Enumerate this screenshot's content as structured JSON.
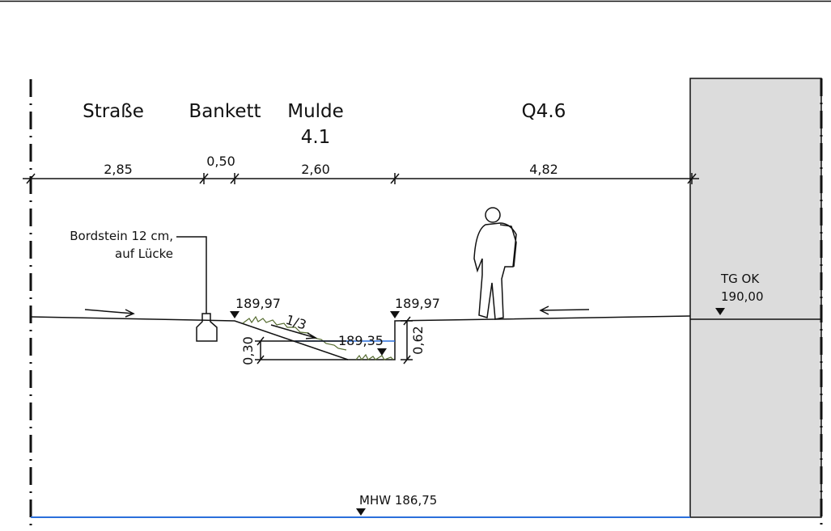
{
  "sections": [
    {
      "label": "Straße"
    },
    {
      "label": "Bankett"
    },
    {
      "label": "Mulde",
      "sublabel": "4.1"
    },
    {
      "label": "Q4.6"
    }
  ],
  "dimensions": [
    "2,85",
    "0,50",
    "2,60",
    "4,82"
  ],
  "curb_note": [
    "Bordstein 12 cm,",
    "auf Lücke"
  ],
  "levels": {
    "left_edge": "189,97",
    "right_edge": "189,97",
    "bottom": "189,35",
    "slope": "1/3",
    "depth_water": "0,30",
    "depth_total": "0,62"
  },
  "building": {
    "label": "TG OK",
    "level": "190,00"
  },
  "water": {
    "label": "MHW 186,75"
  }
}
